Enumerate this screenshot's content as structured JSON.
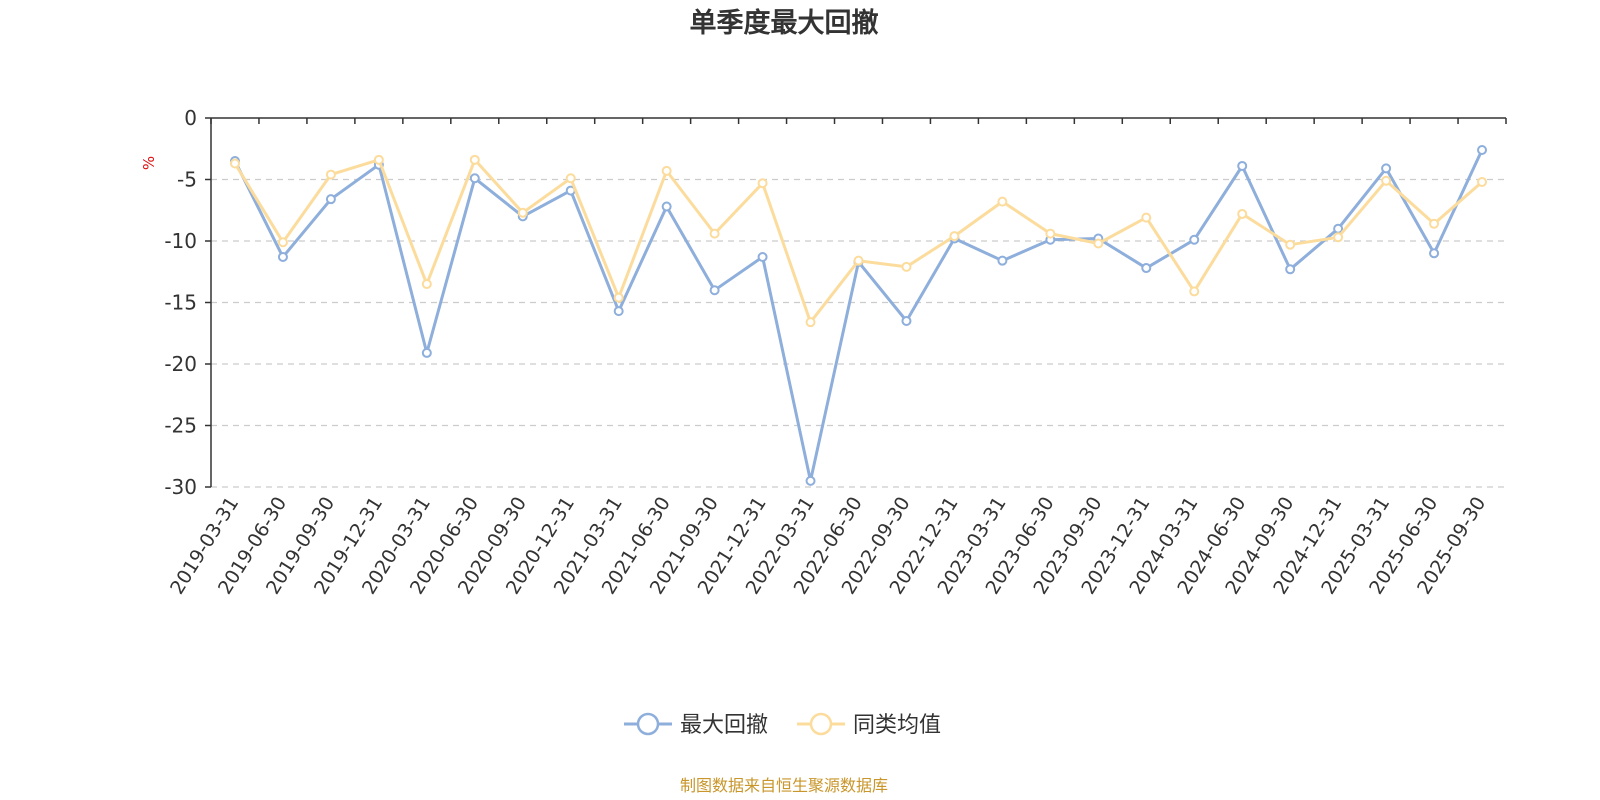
{
  "chart_data": {
    "type": "line",
    "title": "单季度最大回撤",
    "ylabel": "%",
    "ylim": [
      -30,
      0
    ],
    "yticks": [
      0,
      -5,
      -10,
      -15,
      -20,
      -25,
      -30
    ],
    "grid": true,
    "legend_position": "bottom",
    "categories": [
      "2019-03-31",
      "2019-06-30",
      "2019-09-30",
      "2019-12-31",
      "2020-03-31",
      "2020-06-30",
      "2020-09-30",
      "2020-12-31",
      "2021-03-31",
      "2021-06-30",
      "2021-09-30",
      "2021-12-31",
      "2022-03-31",
      "2022-06-30",
      "2022-09-30",
      "2022-12-31",
      "2023-03-31",
      "2023-06-30",
      "2023-09-30",
      "2023-12-31",
      "2024-03-31",
      "2024-06-30",
      "2024-09-30",
      "2024-12-31",
      "2025-03-31",
      "2025-06-30",
      "2025-09-30"
    ],
    "series": [
      {
        "name": "最大回撤",
        "color": "#8eaedb",
        "values": [
          -3.5,
          -11.3,
          -6.6,
          -3.8,
          -19.1,
          -4.9,
          -8.0,
          -5.9,
          -15.7,
          -7.2,
          -14.0,
          -11.3,
          -29.5,
          -11.7,
          -16.5,
          -9.8,
          -11.6,
          -9.9,
          -9.8,
          -12.2,
          -9.9,
          -3.9,
          -12.3,
          -9.0,
          -4.1,
          -11.0,
          -2.6
        ]
      },
      {
        "name": "同类均值",
        "color": "#fcdc9c",
        "values": [
          -3.7,
          -10.1,
          -4.6,
          -3.4,
          -13.5,
          -3.4,
          -7.7,
          -4.9,
          -14.6,
          -4.3,
          -9.4,
          -5.3,
          -16.6,
          -11.6,
          -12.1,
          -9.6,
          -6.8,
          -9.4,
          -10.2,
          -8.1,
          -14.1,
          -7.8,
          -10.3,
          -9.7,
          -5.1,
          -8.6,
          -5.2
        ]
      }
    ]
  },
  "source_note": "制图数据来自恒生聚源数据库",
  "colors": {
    "axis": "#333333",
    "grid": "#cccccc",
    "unit": "#e01010",
    "source": "#c8962a"
  }
}
